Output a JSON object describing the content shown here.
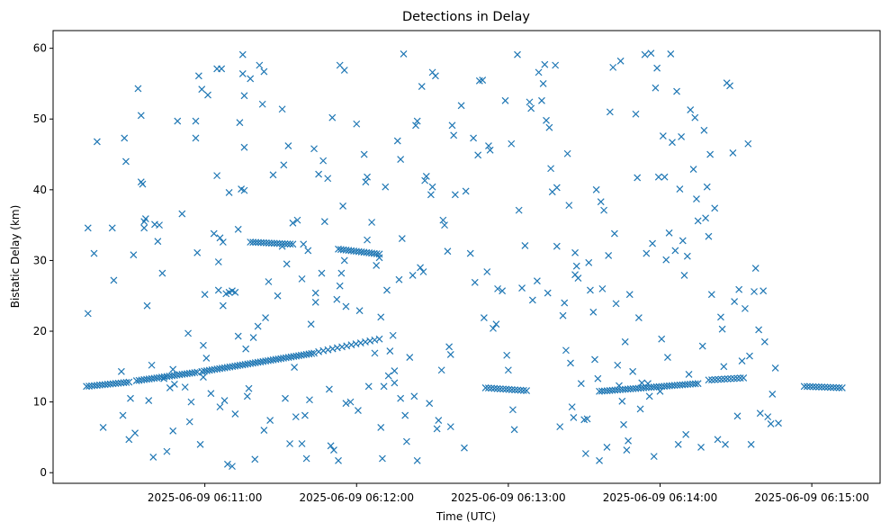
{
  "chart_data": {
    "type": "scatter",
    "title": "Detections in Delay",
    "xlabel": "Time (UTC)",
    "ylabel": "Bistatic Delay (km)",
    "marker": "x",
    "color": "#1f77b4",
    "xlim": [
      0,
      5.45
    ],
    "ylim": [
      -1.5,
      62.5
    ],
    "x_unit": "minutes since 2025-06-09 06:10:00",
    "xticks": [
      {
        "value": 1,
        "label": "2025-06-09 06:11:00"
      },
      {
        "value": 2,
        "label": "2025-06-09 06:12:00"
      },
      {
        "value": 3,
        "label": "2025-06-09 06:13:00"
      },
      {
        "value": 4,
        "label": "2025-06-09 06:14:00"
      },
      {
        "value": 5,
        "label": "2025-06-09 06:15:00"
      }
    ],
    "yticks": [
      {
        "value": 0,
        "label": "0"
      },
      {
        "value": 10,
        "label": "10"
      },
      {
        "value": 20,
        "label": "20"
      },
      {
        "value": 30,
        "label": "30"
      },
      {
        "value": 40,
        "label": "40"
      },
      {
        "value": 50,
        "label": "50"
      },
      {
        "value": 60,
        "label": "60"
      }
    ],
    "tracks": [
      {
        "name": "track-a",
        "x_start": 0.22,
        "x_end": 0.5,
        "step": 0.017,
        "y_start": 12.2,
        "y_end": 12.8
      },
      {
        "name": "track-b",
        "x_start": 0.55,
        "x_end": 0.95,
        "step": 0.017,
        "y_start": 13.0,
        "y_end": 14.2
      },
      {
        "name": "track-c",
        "x_start": 0.98,
        "x_end": 1.72,
        "step": 0.017,
        "y_start": 14.3,
        "y_end": 16.9
      },
      {
        "name": "track-d",
        "x_start": 1.75,
        "x_end": 2.15,
        "step": 0.03,
        "y_start": 17.1,
        "y_end": 18.9
      },
      {
        "name": "track-e",
        "x_start": 1.3,
        "x_end": 1.58,
        "step": 0.017,
        "y_start": 32.6,
        "y_end": 32.3
      },
      {
        "name": "track-f",
        "x_start": 1.88,
        "x_end": 2.15,
        "step": 0.017,
        "y_start": 31.6,
        "y_end": 30.9
      },
      {
        "name": "track-g",
        "x_start": 2.85,
        "x_end": 3.12,
        "step": 0.02,
        "y_start": 12.0,
        "y_end": 11.6
      },
      {
        "name": "track-h",
        "x_start": 3.6,
        "x_end": 4.25,
        "step": 0.017,
        "y_start": 11.5,
        "y_end": 12.6
      },
      {
        "name": "track-i",
        "x_start": 4.32,
        "x_end": 4.55,
        "step": 0.02,
        "y_start": 13.1,
        "y_end": 13.4
      },
      {
        "name": "track-j",
        "x_start": 4.95,
        "x_end": 5.2,
        "step": 0.02,
        "y_start": 12.2,
        "y_end": 12.0
      }
    ],
    "points": [
      [
        0.23,
        34.6
      ],
      [
        0.23,
        22.5
      ],
      [
        0.27,
        31.0
      ],
      [
        0.29,
        46.8
      ],
      [
        0.33,
        6.4
      ],
      [
        0.39,
        34.6
      ],
      [
        0.4,
        27.2
      ],
      [
        0.45,
        14.3
      ],
      [
        0.46,
        8.1
      ],
      [
        0.47,
        47.3
      ],
      [
        0.48,
        44.0
      ],
      [
        0.5,
        4.7
      ],
      [
        0.51,
        10.5
      ],
      [
        0.53,
        30.8
      ],
      [
        0.54,
        5.6
      ],
      [
        0.56,
        54.3
      ],
      [
        0.58,
        50.5
      ],
      [
        0.58,
        41.1
      ],
      [
        0.59,
        40.8
      ],
      [
        0.6,
        34.6
      ],
      [
        0.6,
        35.5
      ],
      [
        0.61,
        35.9
      ],
      [
        0.62,
        23.6
      ],
      [
        0.63,
        10.2
      ],
      [
        0.65,
        15.2
      ],
      [
        0.66,
        2.2
      ],
      [
        0.67,
        35.1
      ],
      [
        0.69,
        32.7
      ],
      [
        0.7,
        35.0
      ],
      [
        0.72,
        28.2
      ],
      [
        0.73,
        13.3
      ],
      [
        0.75,
        3.0
      ],
      [
        0.77,
        12.0
      ],
      [
        0.79,
        14.6
      ],
      [
        0.79,
        5.9
      ],
      [
        0.8,
        12.5
      ],
      [
        0.82,
        49.7
      ],
      [
        0.85,
        36.6
      ],
      [
        0.87,
        12.1
      ],
      [
        0.89,
        19.7
      ],
      [
        0.9,
        7.2
      ],
      [
        0.91,
        10.0
      ],
      [
        0.94,
        47.3
      ],
      [
        0.94,
        49.7
      ],
      [
        0.95,
        31.1
      ],
      [
        0.96,
        56.1
      ],
      [
        0.97,
        4.0
      ],
      [
        0.98,
        54.2
      ],
      [
        0.99,
        18.0
      ],
      [
        0.99,
        13.5
      ],
      [
        1.0,
        25.2
      ],
      [
        1.01,
        16.2
      ],
      [
        1.02,
        53.4
      ],
      [
        1.04,
        11.2
      ],
      [
        1.06,
        33.8
      ],
      [
        1.08,
        42.0
      ],
      [
        1.08,
        57.1
      ],
      [
        1.09,
        29.8
      ],
      [
        1.09,
        25.8
      ],
      [
        1.1,
        33.2
      ],
      [
        1.1,
        9.3
      ],
      [
        1.11,
        57.1
      ],
      [
        1.12,
        32.6
      ],
      [
        1.12,
        23.6
      ],
      [
        1.13,
        10.2
      ],
      [
        1.14,
        25.3
      ],
      [
        1.15,
        1.2
      ],
      [
        1.16,
        39.6
      ],
      [
        1.16,
        25.5
      ],
      [
        1.18,
        25.7
      ],
      [
        1.18,
        0.9
      ],
      [
        1.2,
        8.3
      ],
      [
        1.2,
        25.5
      ],
      [
        1.22,
        19.3
      ],
      [
        1.22,
        34.4
      ],
      [
        1.23,
        49.5
      ],
      [
        1.24,
        40.1
      ],
      [
        1.25,
        56.4
      ],
      [
        1.25,
        59.1
      ],
      [
        1.26,
        53.3
      ],
      [
        1.26,
        46.0
      ],
      [
        1.26,
        39.9
      ],
      [
        1.27,
        17.5
      ],
      [
        1.28,
        10.8
      ],
      [
        1.29,
        11.9
      ],
      [
        1.3,
        55.7
      ],
      [
        1.32,
        19.1
      ],
      [
        1.33,
        1.9
      ],
      [
        1.35,
        20.7
      ],
      [
        1.36,
        57.6
      ],
      [
        1.38,
        52.1
      ],
      [
        1.39,
        56.7
      ],
      [
        1.39,
        6.0
      ],
      [
        1.4,
        21.9
      ],
      [
        1.42,
        27.0
      ],
      [
        1.43,
        7.4
      ],
      [
        1.45,
        42.1
      ],
      [
        1.48,
        25.0
      ],
      [
        1.51,
        51.4
      ],
      [
        1.51,
        32.0
      ],
      [
        1.52,
        43.5
      ],
      [
        1.53,
        10.5
      ],
      [
        1.54,
        29.5
      ],
      [
        1.55,
        46.2
      ],
      [
        1.56,
        4.1
      ],
      [
        1.58,
        35.3
      ],
      [
        1.59,
        14.9
      ],
      [
        1.6,
        7.9
      ],
      [
        1.61,
        35.7
      ],
      [
        1.64,
        27.4
      ],
      [
        1.64,
        4.1
      ],
      [
        1.65,
        32.3
      ],
      [
        1.66,
        8.1
      ],
      [
        1.67,
        2.0
      ],
      [
        1.68,
        31.4
      ],
      [
        1.69,
        10.3
      ],
      [
        1.7,
        21.0
      ],
      [
        1.72,
        45.8
      ],
      [
        1.73,
        24.1
      ],
      [
        1.73,
        25.4
      ],
      [
        1.75,
        42.2
      ],
      [
        1.77,
        28.2
      ],
      [
        1.78,
        44.1
      ],
      [
        1.79,
        35.5
      ],
      [
        1.81,
        41.6
      ],
      [
        1.82,
        11.8
      ],
      [
        1.83,
        3.8
      ],
      [
        1.84,
        50.2
      ],
      [
        1.85,
        3.2
      ],
      [
        1.87,
        24.5
      ],
      [
        1.88,
        1.7
      ],
      [
        1.89,
        57.6
      ],
      [
        1.89,
        26.4
      ],
      [
        1.9,
        28.2
      ],
      [
        1.91,
        37.7
      ],
      [
        1.92,
        56.9
      ],
      [
        1.92,
        30.0
      ],
      [
        1.93,
        23.5
      ],
      [
        1.93,
        9.8
      ],
      [
        1.96,
        10.0
      ],
      [
        2.0,
        49.3
      ],
      [
        2.01,
        8.8
      ],
      [
        2.02,
        22.9
      ],
      [
        2.05,
        45.0
      ],
      [
        2.06,
        41.1
      ],
      [
        2.07,
        41.8
      ],
      [
        2.07,
        32.9
      ],
      [
        2.08,
        12.2
      ],
      [
        2.1,
        35.4
      ],
      [
        2.12,
        16.9
      ],
      [
        2.13,
        29.3
      ],
      [
        2.15,
        30.4
      ],
      [
        2.16,
        22.0
      ],
      [
        2.16,
        6.4
      ],
      [
        2.17,
        2.0
      ],
      [
        2.18,
        12.2
      ],
      [
        2.19,
        40.4
      ],
      [
        2.2,
        25.8
      ],
      [
        2.21,
        13.7
      ],
      [
        2.22,
        17.2
      ],
      [
        2.24,
        19.4
      ],
      [
        2.25,
        14.4
      ],
      [
        2.25,
        12.7
      ],
      [
        2.27,
        46.9
      ],
      [
        2.28,
        27.3
      ],
      [
        2.29,
        44.3
      ],
      [
        2.29,
        10.5
      ],
      [
        2.3,
        33.1
      ],
      [
        2.31,
        59.2
      ],
      [
        2.32,
        8.1
      ],
      [
        2.33,
        4.4
      ],
      [
        2.35,
        16.3
      ],
      [
        2.37,
        27.9
      ],
      [
        2.38,
        10.8
      ],
      [
        2.39,
        49.1
      ],
      [
        2.4,
        49.7
      ],
      [
        2.4,
        1.7
      ],
      [
        2.42,
        29.0
      ],
      [
        2.43,
        54.6
      ],
      [
        2.44,
        28.4
      ],
      [
        2.45,
        41.3
      ],
      [
        2.46,
        41.9
      ],
      [
        2.48,
        9.8
      ],
      [
        2.49,
        39.3
      ],
      [
        2.5,
        40.4
      ],
      [
        2.5,
        56.6
      ],
      [
        2.52,
        56.1
      ],
      [
        2.53,
        6.2
      ],
      [
        2.54,
        7.4
      ],
      [
        2.56,
        14.5
      ],
      [
        2.57,
        35.7
      ],
      [
        2.58,
        35.0
      ],
      [
        2.6,
        31.3
      ],
      [
        2.61,
        17.8
      ],
      [
        2.62,
        16.7
      ],
      [
        2.62,
        6.5
      ],
      [
        2.63,
        49.1
      ],
      [
        2.64,
        47.7
      ],
      [
        2.65,
        39.3
      ],
      [
        2.69,
        51.9
      ],
      [
        2.71,
        3.5
      ],
      [
        2.72,
        39.8
      ],
      [
        2.75,
        31.0
      ],
      [
        2.77,
        47.3
      ],
      [
        2.78,
        26.9
      ],
      [
        2.8,
        44.9
      ],
      [
        2.81,
        55.4
      ],
      [
        2.83,
        55.5
      ],
      [
        2.84,
        21.9
      ],
      [
        2.86,
        28.4
      ],
      [
        2.87,
        46.2
      ],
      [
        2.88,
        45.6
      ],
      [
        2.9,
        20.4
      ],
      [
        2.92,
        21.0
      ],
      [
        2.93,
        26.0
      ],
      [
        2.96,
        25.7
      ],
      [
        2.98,
        52.6
      ],
      [
        2.99,
        16.6
      ],
      [
        3.0,
        14.5
      ],
      [
        3.02,
        46.5
      ],
      [
        3.03,
        8.9
      ],
      [
        3.04,
        6.1
      ],
      [
        3.06,
        59.1
      ],
      [
        3.07,
        37.1
      ],
      [
        3.09,
        26.1
      ],
      [
        3.11,
        32.1
      ],
      [
        3.14,
        52.4
      ],
      [
        3.15,
        51.5
      ],
      [
        3.16,
        24.4
      ],
      [
        3.19,
        27.1
      ],
      [
        3.2,
        56.6
      ],
      [
        3.22,
        52.6
      ],
      [
        3.23,
        55.0
      ],
      [
        3.24,
        57.7
      ],
      [
        3.25,
        49.8
      ],
      [
        3.26,
        25.4
      ],
      [
        3.27,
        48.8
      ],
      [
        3.28,
        43.0
      ],
      [
        3.29,
        39.7
      ],
      [
        3.31,
        57.6
      ],
      [
        3.32,
        40.3
      ],
      [
        3.32,
        32.0
      ],
      [
        3.34,
        6.5
      ],
      [
        3.36,
        22.2
      ],
      [
        3.37,
        24.0
      ],
      [
        3.38,
        17.3
      ],
      [
        3.39,
        45.1
      ],
      [
        3.4,
        37.8
      ],
      [
        3.41,
        15.5
      ],
      [
        3.42,
        9.3
      ],
      [
        3.43,
        7.8
      ],
      [
        3.44,
        28.0
      ],
      [
        3.44,
        31.1
      ],
      [
        3.45,
        29.2
      ],
      [
        3.46,
        27.5
      ],
      [
        3.48,
        12.6
      ],
      [
        3.5,
        7.5
      ],
      [
        3.51,
        2.7
      ],
      [
        3.52,
        7.6
      ],
      [
        3.53,
        29.7
      ],
      [
        3.54,
        25.8
      ],
      [
        3.56,
        22.7
      ],
      [
        3.57,
        16.0
      ],
      [
        3.58,
        40.0
      ],
      [
        3.59,
        13.3
      ],
      [
        3.6,
        1.7
      ],
      [
        3.61,
        38.3
      ],
      [
        3.62,
        26.0
      ],
      [
        3.63,
        37.1
      ],
      [
        3.65,
        3.6
      ],
      [
        3.66,
        30.7
      ],
      [
        3.67,
        51.0
      ],
      [
        3.69,
        57.3
      ],
      [
        3.7,
        33.8
      ],
      [
        3.71,
        23.9
      ],
      [
        3.72,
        15.2
      ],
      [
        3.73,
        12.3
      ],
      [
        3.74,
        58.2
      ],
      [
        3.75,
        10.1
      ],
      [
        3.76,
        6.8
      ],
      [
        3.77,
        18.5
      ],
      [
        3.78,
        3.2
      ],
      [
        3.79,
        4.5
      ],
      [
        3.8,
        25.2
      ],
      [
        3.82,
        14.3
      ],
      [
        3.84,
        50.7
      ],
      [
        3.85,
        41.7
      ],
      [
        3.86,
        21.9
      ],
      [
        3.87,
        9.0
      ],
      [
        3.88,
        12.7
      ],
      [
        3.9,
        59.1
      ],
      [
        3.91,
        31.0
      ],
      [
        3.92,
        12.6
      ],
      [
        3.93,
        10.8
      ],
      [
        3.94,
        59.3
      ],
      [
        3.95,
        32.4
      ],
      [
        3.96,
        2.3
      ],
      [
        3.97,
        54.4
      ],
      [
        3.98,
        57.2
      ],
      [
        3.99,
        41.8
      ],
      [
        4.0,
        11.5
      ],
      [
        4.01,
        18.9
      ],
      [
        4.02,
        47.6
      ],
      [
        4.03,
        41.8
      ],
      [
        4.04,
        30.1
      ],
      [
        4.05,
        16.3
      ],
      [
        4.06,
        33.9
      ],
      [
        4.07,
        59.2
      ],
      [
        4.08,
        46.7
      ],
      [
        4.1,
        31.4
      ],
      [
        4.11,
        53.9
      ],
      [
        4.12,
        4.0
      ],
      [
        4.13,
        40.1
      ],
      [
        4.14,
        47.5
      ],
      [
        4.15,
        32.8
      ],
      [
        4.16,
        27.9
      ],
      [
        4.17,
        5.4
      ],
      [
        4.18,
        30.6
      ],
      [
        4.19,
        13.9
      ],
      [
        4.2,
        51.3
      ],
      [
        4.22,
        42.9
      ],
      [
        4.23,
        50.2
      ],
      [
        4.24,
        38.7
      ],
      [
        4.25,
        35.6
      ],
      [
        4.27,
        3.6
      ],
      [
        4.28,
        17.9
      ],
      [
        4.29,
        48.4
      ],
      [
        4.3,
        36.0
      ],
      [
        4.31,
        40.4
      ],
      [
        4.32,
        33.4
      ],
      [
        4.33,
        45.0
      ],
      [
        4.34,
        25.2
      ],
      [
        4.36,
        37.4
      ],
      [
        4.38,
        4.7
      ],
      [
        4.4,
        22.0
      ],
      [
        4.41,
        20.3
      ],
      [
        4.42,
        15.0
      ],
      [
        4.43,
        4.0
      ],
      [
        4.44,
        55.1
      ],
      [
        4.46,
        54.7
      ],
      [
        4.48,
        45.2
      ],
      [
        4.49,
        24.2
      ],
      [
        4.51,
        8.0
      ],
      [
        4.52,
        25.9
      ],
      [
        4.54,
        15.8
      ],
      [
        4.56,
        23.2
      ],
      [
        4.58,
        46.5
      ],
      [
        4.59,
        16.5
      ],
      [
        4.6,
        4.0
      ],
      [
        4.62,
        25.6
      ],
      [
        4.63,
        28.9
      ],
      [
        4.65,
        20.2
      ],
      [
        4.66,
        8.4
      ],
      [
        4.68,
        25.7
      ],
      [
        4.69,
        18.5
      ],
      [
        4.71,
        7.9
      ],
      [
        4.73,
        6.9
      ],
      [
        4.74,
        11.1
      ],
      [
        4.76,
        14.8
      ],
      [
        4.78,
        7.0
      ]
    ]
  }
}
